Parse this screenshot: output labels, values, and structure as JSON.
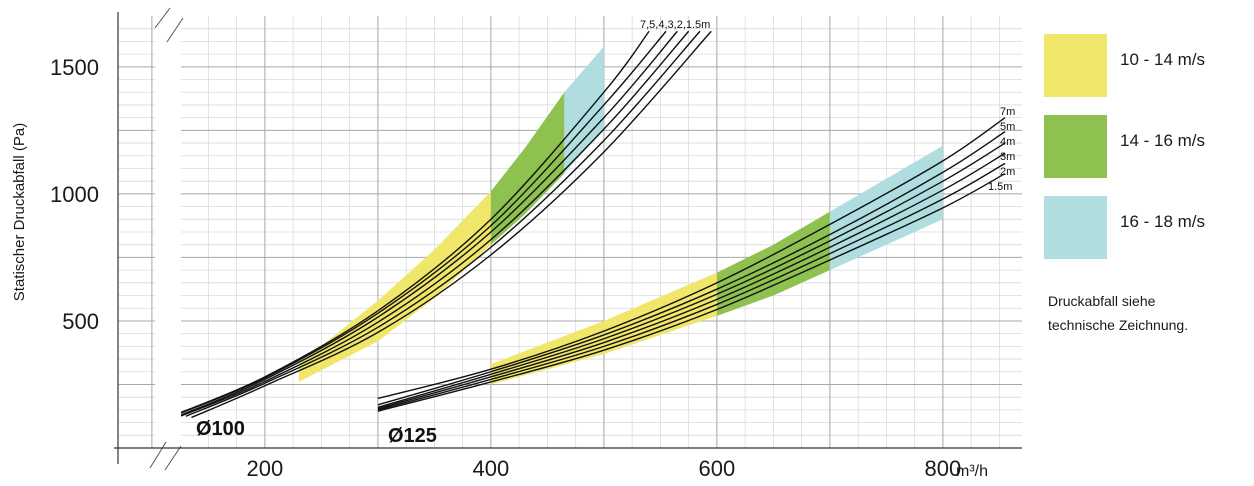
{
  "chart_data": {
    "type": "line",
    "title": "",
    "ylabel": "Statischer Druckabfall (Pa)",
    "xlabel": "",
    "x_unit": "m³/h",
    "xlim": [
      70,
      870
    ],
    "ylim": [
      0,
      1700
    ],
    "x_ticks": [
      200,
      400,
      600,
      800
    ],
    "x_tick_labels": [
      "200",
      "400",
      "600",
      "800"
    ],
    "y_ticks": [
      500,
      1000,
      1500
    ],
    "y_tick_labels": [
      "500",
      "1000",
      "1500"
    ],
    "grid": true,
    "axis_break": true,
    "legend": {
      "placement": "right",
      "items": [
        {
          "label": "10 - 14 m/s",
          "color": "#f0e66a"
        },
        {
          "label": "14 - 16 m/s",
          "color": "#8fc150"
        },
        {
          "label": "16 - 18 m/s",
          "color": "#b0dde0"
        }
      ],
      "note_lines": [
        "Druckabfall siehe",
        "technische Zeichnung."
      ]
    },
    "groups": [
      {
        "label": "Ø100",
        "curve_label": "7,5,4,3,2,1.5m",
        "bands": [
          {
            "velocity": "10 - 14 m/s",
            "color": "#f0e66a",
            "x_range": [
              230,
              400
            ],
            "upper": [
              [
                230,
                330
              ],
              [
                300,
                580
              ],
              [
                350,
                780
              ],
              [
                400,
                1010
              ]
            ],
            "lower": [
              [
                230,
                260
              ],
              [
                300,
                420
              ],
              [
                350,
                590
              ],
              [
                400,
                800
              ]
            ]
          },
          {
            "velocity": "14 - 16 m/s",
            "color": "#8fc150",
            "x_range": [
              400,
              465
            ],
            "upper": [
              [
                400,
                1010
              ],
              [
                430,
                1180
              ],
              [
                465,
                1400
              ]
            ],
            "lower": [
              [
                400,
                800
              ],
              [
                430,
                920
              ],
              [
                465,
                1080
              ]
            ]
          },
          {
            "velocity": "16 - 18 m/s",
            "color": "#b0dde0",
            "x_range": [
              465,
              500
            ],
            "upper": [
              [
                465,
                1400
              ],
              [
                500,
                1580
              ]
            ],
            "lower": [
              [
                465,
                1080
              ],
              [
                500,
                1260
              ]
            ]
          }
        ],
        "curves": [
          {
            "name": "7m",
            "points": [
              [
                120,
                130
              ],
              [
                200,
                280
              ],
              [
                300,
                540
              ],
              [
                400,
                900
              ],
              [
                500,
                1400
              ],
              [
                540,
                1640
              ]
            ]
          },
          {
            "name": "5m",
            "points": [
              [
                120,
                128
              ],
              [
                200,
                276
              ],
              [
                300,
                530
              ],
              [
                400,
                875
              ],
              [
                500,
                1350
              ],
              [
                555,
                1640
              ]
            ]
          },
          {
            "name": "4m",
            "points": [
              [
                125,
                128
              ],
              [
                200,
                270
              ],
              [
                300,
                515
              ],
              [
                400,
                850
              ],
              [
                500,
                1300
              ],
              [
                565,
                1640
              ]
            ]
          },
          {
            "name": "3m",
            "points": [
              [
                125,
                125
              ],
              [
                200,
                262
              ],
              [
                300,
                495
              ],
              [
                400,
                820
              ],
              [
                500,
                1255
              ],
              [
                575,
                1640
              ]
            ]
          },
          {
            "name": "2m",
            "points": [
              [
                130,
                125
              ],
              [
                200,
                255
              ],
              [
                300,
                475
              ],
              [
                400,
                790
              ],
              [
                500,
                1210
              ],
              [
                585,
                1640
              ]
            ]
          },
          {
            "name": "1.5m",
            "points": [
              [
                135,
                120
              ],
              [
                200,
                245
              ],
              [
                300,
                455
              ],
              [
                400,
                760
              ],
              [
                500,
                1165
              ],
              [
                595,
                1640
              ]
            ]
          }
        ]
      },
      {
        "label": "Ø125",
        "curve_labels": [
          "7m",
          "5m",
          "4m",
          "3m",
          "2m",
          "1.5m"
        ],
        "bands": [
          {
            "velocity": "10 - 14 m/s",
            "color": "#f0e66a",
            "x_range": [
              400,
              600
            ],
            "upper": [
              [
                400,
                330
              ],
              [
                500,
                500
              ],
              [
                600,
                690
              ]
            ],
            "lower": [
              [
                400,
                250
              ],
              [
                500,
                370
              ],
              [
                600,
                520
              ]
            ]
          },
          {
            "velocity": "14 - 16 m/s",
            "color": "#8fc150",
            "x_range": [
              600,
              700
            ],
            "upper": [
              [
                600,
                690
              ],
              [
                650,
                800
              ],
              [
                700,
                930
              ]
            ],
            "lower": [
              [
                600,
                520
              ],
              [
                650,
                600
              ],
              [
                700,
                700
              ]
            ]
          },
          {
            "velocity": "16 - 18 m/s",
            "color": "#b0dde0",
            "x_range": [
              700,
              800
            ],
            "upper": [
              [
                700,
                930
              ],
              [
                750,
                1060
              ],
              [
                800,
                1190
              ]
            ],
            "lower": [
              [
                700,
                700
              ],
              [
                750,
                800
              ],
              [
                800,
                900
              ]
            ]
          }
        ],
        "curves": [
          {
            "name": "7m",
            "points": [
              [
                300,
                195
              ],
              [
                400,
                310
              ],
              [
                500,
                460
              ],
              [
                600,
                650
              ],
              [
                700,
                880
              ],
              [
                800,
                1130
              ],
              [
                855,
                1300
              ]
            ]
          },
          {
            "name": "5m",
            "points": [
              [
                300,
                170
              ],
              [
                400,
                300
              ],
              [
                500,
                445
              ],
              [
                600,
                625
              ],
              [
                700,
                840
              ],
              [
                800,
                1085
              ],
              [
                855,
                1245
              ]
            ]
          },
          {
            "name": "4m",
            "points": [
              [
                300,
                160
              ],
              [
                400,
                290
              ],
              [
                500,
                430
              ],
              [
                600,
                605
              ],
              [
                700,
                815
              ],
              [
                800,
                1050
              ],
              [
                855,
                1200
              ]
            ]
          },
          {
            "name": "3m",
            "points": [
              [
                300,
                155
              ],
              [
                400,
                280
              ],
              [
                500,
                415
              ],
              [
                600,
                585
              ],
              [
                700,
                790
              ],
              [
                800,
                1015
              ],
              [
                855,
                1160
              ]
            ]
          },
          {
            "name": "2m",
            "points": [
              [
                300,
                150
              ],
              [
                400,
                270
              ],
              [
                500,
                400
              ],
              [
                600,
                565
              ],
              [
                700,
                765
              ],
              [
                800,
                980
              ],
              [
                855,
                1120
              ]
            ]
          },
          {
            "name": "1.5m",
            "points": [
              [
                300,
                145
              ],
              [
                400,
                260
              ],
              [
                500,
                385
              ],
              [
                600,
                545
              ],
              [
                700,
                740
              ],
              [
                800,
                945
              ],
              [
                855,
                1080
              ]
            ]
          }
        ]
      }
    ]
  }
}
